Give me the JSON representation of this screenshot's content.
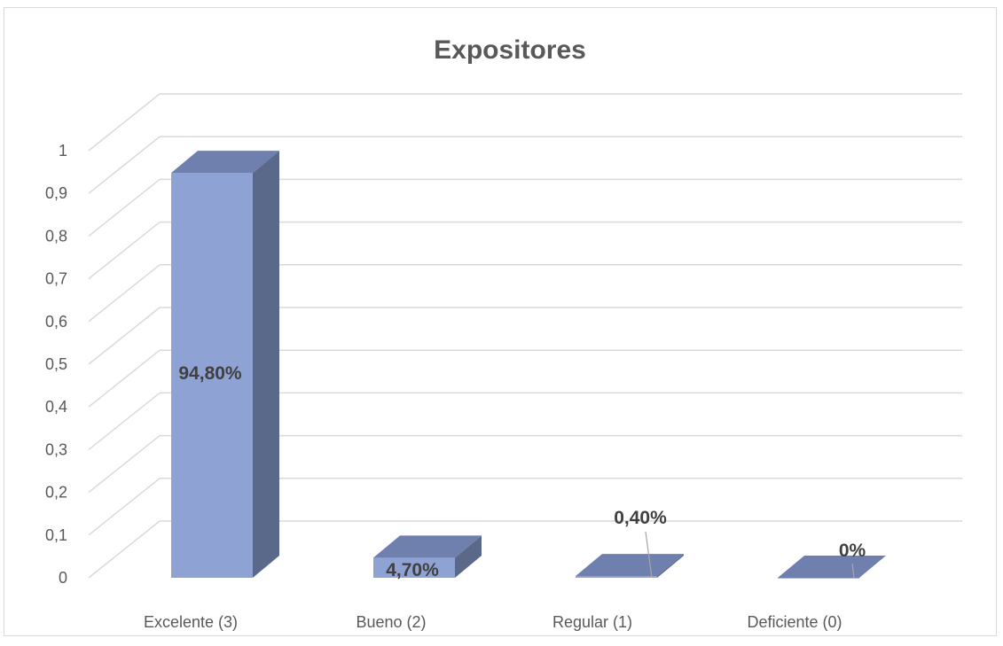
{
  "chart_data": {
    "type": "bar",
    "title": "Expositores",
    "categories": [
      "Excelente (3)",
      "Bueno (2)",
      "Regular (1)",
      "Deficiente (0)"
    ],
    "values": [
      0.948,
      0.047,
      0.004,
      0
    ],
    "data_labels": [
      "94,80%",
      "4,70%",
      "0,40%",
      "0%"
    ],
    "y_ticks": [
      "0",
      "0,1",
      "0,2",
      "0,3",
      "0,4",
      "0,5",
      "0,6",
      "0,7",
      "0,8",
      "0,9",
      "1"
    ],
    "ylim": [
      0,
      1
    ],
    "grid": true,
    "style": "3d-column",
    "colors": {
      "front": "#8FA2D4",
      "top": "#6F7FAE",
      "side": "#5A6889",
      "grid": "#d9d9d9",
      "text": "#595959",
      "label": "#404040"
    }
  }
}
